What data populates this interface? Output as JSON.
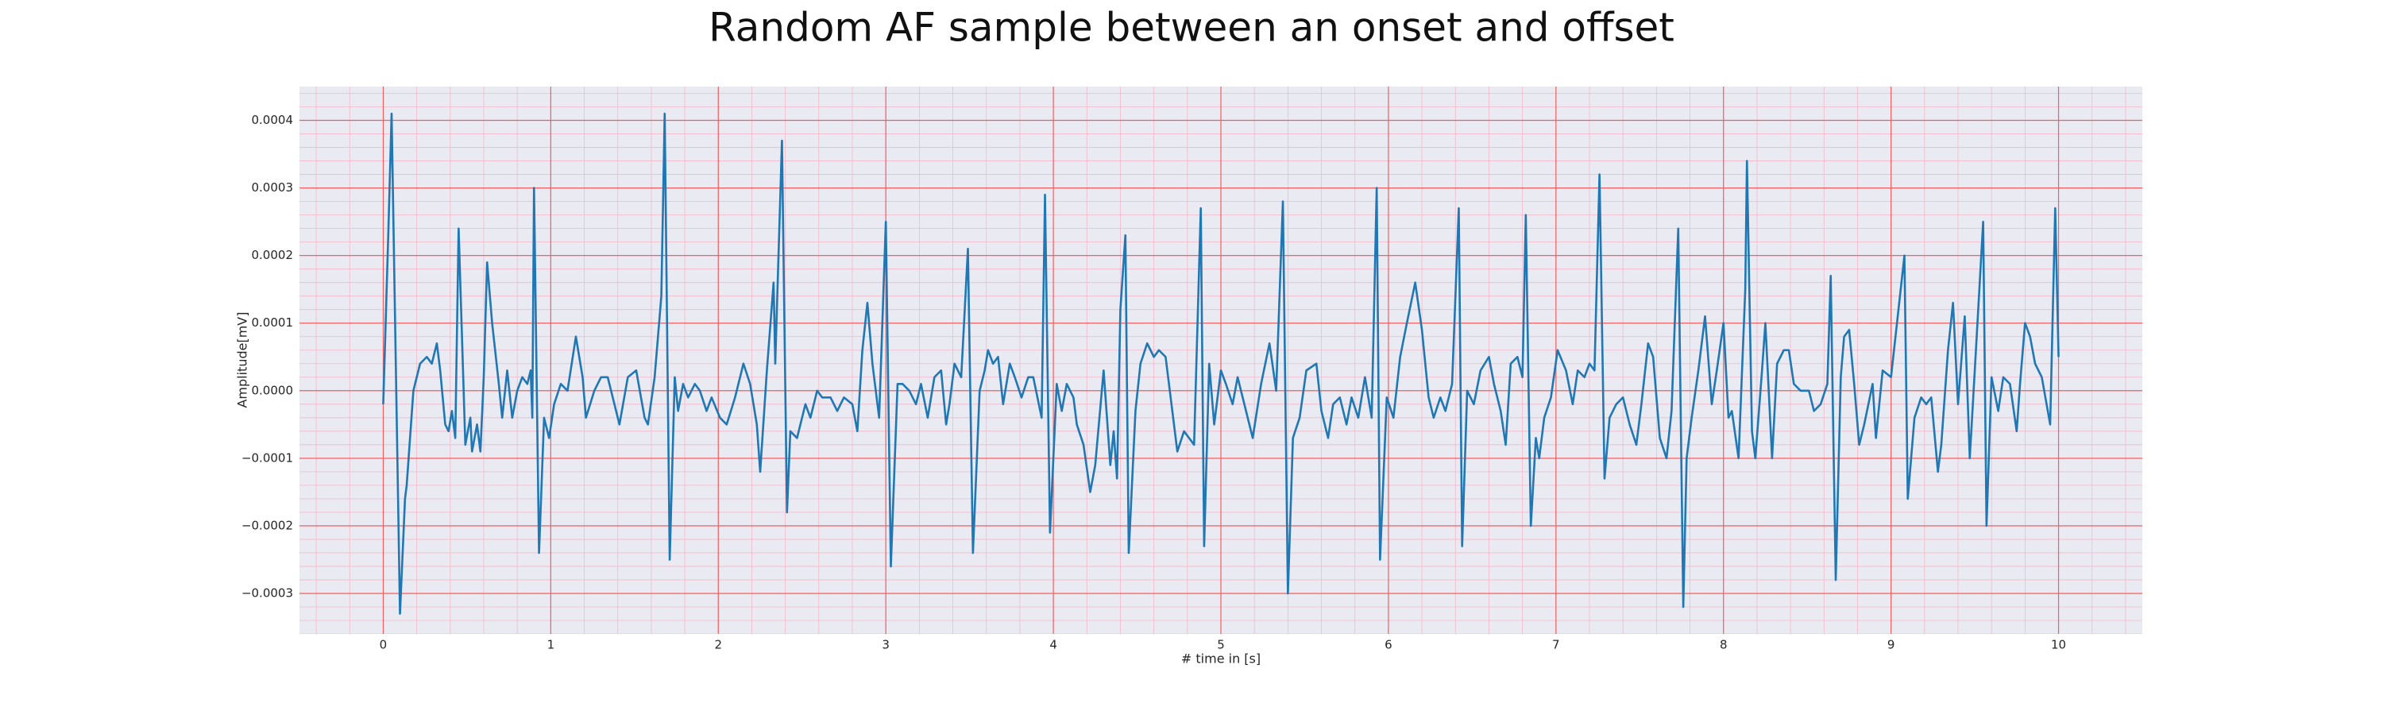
{
  "chart_data": {
    "type": "line",
    "title": "Random AF sample between an onset and offset",
    "x_label": "# time in [s]",
    "y_label": "Amplitude[mV]",
    "color": "#1f77b4",
    "grid": true,
    "minor_grid": true,
    "xlim": [
      -0.5,
      10.5
    ],
    "ylim": [
      -0.00036,
      0.00045
    ],
    "xticks": [
      0,
      1,
      2,
      3,
      4,
      5,
      6,
      7,
      8,
      9,
      10
    ],
    "yticks": [
      {
        "value": -0.0003,
        "label": "−0.0003"
      },
      {
        "value": -0.0002,
        "label": "−0.0002"
      },
      {
        "value": -0.0001,
        "label": "−0.0001"
      },
      {
        "value": 0,
        "label": "0.0000"
      },
      0.0001,
      0.0002,
      0.0003,
      0.0004
    ],
    "x": [
      0,
      0.03,
      0.05,
      0.1,
      0.13,
      0.14,
      0.18,
      0.22,
      0.26,
      0.29,
      0.32,
      0.34,
      0.37,
      0.39,
      0.41,
      0.43,
      0.45,
      0.49,
      0.52,
      0.53,
      0.56,
      0.58,
      0.6,
      0.62,
      0.65,
      0.69,
      0.71,
      0.74,
      0.77,
      0.8,
      0.83,
      0.86,
      0.88,
      0.89,
      0.9,
      0.93,
      0.96,
      0.99,
      1.02,
      1.06,
      1.1,
      1.15,
      1.19,
      1.21,
      1.26,
      1.3,
      1.34,
      1.38,
      1.41,
      1.46,
      1.51,
      1.56,
      1.58,
      1.62,
      1.66,
      1.68,
      1.71,
      1.74,
      1.76,
      1.79,
      1.82,
      1.86,
      1.89,
      1.93,
      1.96,
      2.01,
      2.05,
      2.1,
      2.15,
      2.19,
      2.23,
      2.25,
      2.29,
      2.33,
      2.34,
      2.38,
      2.41,
      2.43,
      2.47,
      2.52,
      2.55,
      2.59,
      2.62,
      2.67,
      2.71,
      2.75,
      2.8,
      2.83,
      2.86,
      2.89,
      2.92,
      2.96,
      3.0,
      3.03,
      3.07,
      3.1,
      3.14,
      3.18,
      3.21,
      3.25,
      3.29,
      3.33,
      3.36,
      3.38,
      3.41,
      3.45,
      3.49,
      3.52,
      3.56,
      3.59,
      3.61,
      3.64,
      3.67,
      3.7,
      3.74,
      3.77,
      3.81,
      3.85,
      3.88,
      3.93,
      3.95,
      3.98,
      4.02,
      4.05,
      4.08,
      4.12,
      4.14,
      4.18,
      4.22,
      4.25,
      4.3,
      4.34,
      4.36,
      4.38,
      4.4,
      4.43,
      4.45,
      4.49,
      4.52,
      4.56,
      4.6,
      4.63,
      4.67,
      4.71,
      4.74,
      4.78,
      4.84,
      4.88,
      4.9,
      4.93,
      4.96,
      5.0,
      5.03,
      5.07,
      5.1,
      5.15,
      5.19,
      5.24,
      5.29,
      5.33,
      5.37,
      5.4,
      5.43,
      5.47,
      5.51,
      5.57,
      5.6,
      5.64,
      5.67,
      5.71,
      5.75,
      5.78,
      5.82,
      5.86,
      5.9,
      5.93,
      5.95,
      5.99,
      6.03,
      6.07,
      6.11,
      6.16,
      6.2,
      6.24,
      6.27,
      6.31,
      6.34,
      6.38,
      6.42,
      6.44,
      6.47,
      6.51,
      6.55,
      6.6,
      6.63,
      6.67,
      6.7,
      6.73,
      6.77,
      6.8,
      6.82,
      6.85,
      6.88,
      6.9,
      6.93,
      6.97,
      7.01,
      7.06,
      7.1,
      7.13,
      7.17,
      7.2,
      7.23,
      7.26,
      7.29,
      7.32,
      7.36,
      7.4,
      7.44,
      7.48,
      7.51,
      7.55,
      7.58,
      7.62,
      7.66,
      7.69,
      7.73,
      7.76,
      7.78,
      7.81,
      7.85,
      7.89,
      7.93,
      7.96,
      8.0,
      8.03,
      8.05,
      8.09,
      8.13,
      8.14,
      8.17,
      8.19,
      8.23,
      8.25,
      8.29,
      8.32,
      8.36,
      8.39,
      8.42,
      8.46,
      8.51,
      8.54,
      8.58,
      8.62,
      8.64,
      8.67,
      8.7,
      8.72,
      8.75,
      8.78,
      8.81,
      8.84,
      8.89,
      8.91,
      8.95,
      9.0,
      9.08,
      9.1,
      9.14,
      9.18,
      9.21,
      9.24,
      9.28,
      9.3,
      9.34,
      9.37,
      9.4,
      9.44,
      9.47,
      9.5,
      9.55,
      9.57,
      9.6,
      9.64,
      9.67,
      9.71,
      9.75,
      9.77,
      9.8,
      9.83,
      9.86,
      9.9,
      9.95,
      9.98,
      10.0
    ],
    "values": [
      -2e-05,
      0.00023,
      0.00041,
      -0.00033,
      -0.00016,
      -0.00014,
      0.0,
      4e-05,
      5e-05,
      4e-05,
      7e-05,
      3e-05,
      -5e-05,
      -6e-05,
      -3e-05,
      -7e-05,
      0.00024,
      -8e-05,
      -4e-05,
      -9e-05,
      -5e-05,
      -9e-05,
      2e-05,
      0.00019,
      0.0001,
      1e-05,
      -4e-05,
      3e-05,
      -4e-05,
      0.0,
      2e-05,
      1e-05,
      3e-05,
      -4e-05,
      0.0003,
      -0.00024,
      -4e-05,
      -7e-05,
      -2e-05,
      1e-05,
      0.0,
      8e-05,
      2e-05,
      -4e-05,
      0.0,
      2e-05,
      2e-05,
      -2e-05,
      -5e-05,
      2e-05,
      3e-05,
      -4e-05,
      -5e-05,
      2e-05,
      0.00014,
      0.00041,
      -0.00025,
      2e-05,
      -3e-05,
      1e-05,
      -1e-05,
      1e-05,
      0.0,
      -3e-05,
      -1e-05,
      -4e-05,
      -5e-05,
      -1e-05,
      4e-05,
      1e-05,
      -5e-05,
      -0.00012,
      3e-05,
      0.00016,
      4e-05,
      0.00037,
      -0.00018,
      -6e-05,
      -7e-05,
      -2e-05,
      -4e-05,
      0.0,
      -1e-05,
      -1e-05,
      -3e-05,
      -1e-05,
      -2e-05,
      -6e-05,
      6e-05,
      0.00013,
      4e-05,
      -4e-05,
      0.00025,
      -0.00026,
      1e-05,
      1e-05,
      0.0,
      -2e-05,
      1e-05,
      -4e-05,
      2e-05,
      3e-05,
      -5e-05,
      -2e-05,
      4e-05,
      2e-05,
      0.00021,
      -0.00024,
      0.0,
      3e-05,
      6e-05,
      4e-05,
      5e-05,
      -2e-05,
      4e-05,
      2e-05,
      -1e-05,
      2e-05,
      2e-05,
      -4e-05,
      0.00029,
      -0.00021,
      1e-05,
      -3e-05,
      1e-05,
      -1e-05,
      -5e-05,
      -8e-05,
      -0.00015,
      -0.00011,
      3e-05,
      -0.00011,
      -6e-05,
      -0.00013,
      0.00012,
      0.00023,
      -0.00024,
      -3e-05,
      4e-05,
      7e-05,
      5e-05,
      6e-05,
      5e-05,
      -3e-05,
      -9e-05,
      -6e-05,
      -8e-05,
      0.00027,
      -0.00023,
      4e-05,
      -5e-05,
      3e-05,
      1e-05,
      -2e-05,
      2e-05,
      -3e-05,
      -7e-05,
      1e-05,
      7e-05,
      0.0,
      0.00028,
      -0.0003,
      -7e-05,
      -4e-05,
      3e-05,
      4e-05,
      -3e-05,
      -7e-05,
      -2e-05,
      -1e-05,
      -5e-05,
      -1e-05,
      -4e-05,
      2e-05,
      -4e-05,
      0.0003,
      -0.00025,
      -1e-05,
      -4e-05,
      5e-05,
      0.0001,
      0.00016,
      9e-05,
      -1e-05,
      -4e-05,
      -1e-05,
      -3e-05,
      1e-05,
      0.00027,
      -0.00023,
      0.0,
      -2e-05,
      3e-05,
      5e-05,
      1e-05,
      -3e-05,
      -8e-05,
      4e-05,
      5e-05,
      2e-05,
      0.00026,
      -0.0002,
      -7e-05,
      -0.0001,
      -4e-05,
      -1e-05,
      6e-05,
      3e-05,
      -2e-05,
      3e-05,
      2e-05,
      4e-05,
      3e-05,
      0.00032,
      -0.00013,
      -4e-05,
      -2e-05,
      -1e-05,
      -5e-05,
      -8e-05,
      -2e-05,
      7e-05,
      5e-05,
      -7e-05,
      -0.0001,
      -3e-05,
      0.00024,
      -0.00032,
      -0.0001,
      -4e-05,
      3e-05,
      0.00011,
      -2e-05,
      3e-05,
      0.0001,
      -4e-05,
      -3e-05,
      -0.0001,
      0.00015,
      0.00034,
      -6e-05,
      -0.0001,
      3e-05,
      0.0001,
      -0.0001,
      4e-05,
      6e-05,
      6e-05,
      1e-05,
      0.0,
      0.0,
      -3e-05,
      -2e-05,
      1e-05,
      0.00017,
      -0.00028,
      2e-05,
      8e-05,
      9e-05,
      1e-05,
      -8e-05,
      -5e-05,
      1e-05,
      -7e-05,
      3e-05,
      2e-05,
      0.0002,
      -0.00016,
      -4e-05,
      -1e-05,
      -2e-05,
      -1e-05,
      -0.00012,
      -8e-05,
      6e-05,
      0.00013,
      -2e-05,
      0.00011,
      -0.0001,
      3e-05,
      0.00025,
      -0.0002,
      2e-05,
      -3e-05,
      2e-05,
      1e-05,
      -6e-05,
      1e-05,
      0.0001,
      8e-05,
      4e-05,
      2e-05,
      -5e-05,
      0.00027,
      5e-05
    ]
  }
}
